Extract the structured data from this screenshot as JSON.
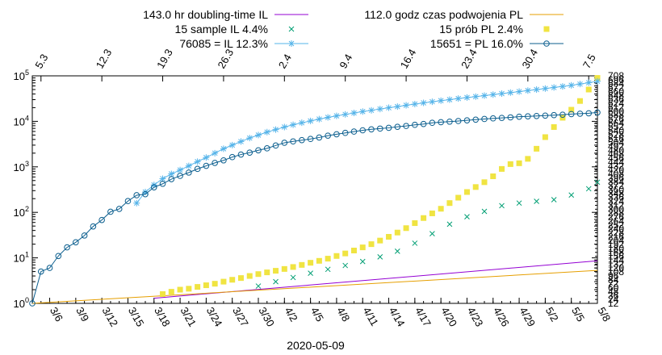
{
  "chart_data": {
    "type": "scatter",
    "y_scale": "log",
    "ylim": [
      1,
      100000
    ],
    "x_dates": [
      "2020-03-04",
      "2020-05-08"
    ],
    "xlabel": "2020-05-09",
    "x_tick_labels": [
      "3/6",
      "3/9",
      "3/12",
      "3/15",
      "3/18",
      "3/21",
      "3/24",
      "3/27",
      "3/30",
      "4/2",
      "4/5",
      "4/8",
      "4/11",
      "4/14",
      "4/17",
      "4/20",
      "4/23",
      "4/26",
      "4/29",
      "5/2",
      "5/5",
      "5/8"
    ],
    "y_tick_labels": [
      "10^0",
      "10^1",
      "10^2",
      "10^3",
      "10^4",
      "10^5"
    ],
    "top_tick_labels": [
      "5.3",
      "12.3",
      "19.3",
      "26.3",
      "2.4",
      "9.4",
      "16.4",
      "23.4",
      "30.4",
      "7.5"
    ],
    "right_tick_labels": [
      "12",
      "24",
      "36",
      "48",
      "60",
      "72",
      "84",
      "96",
      "108",
      "120",
      "132",
      "144",
      "156",
      "168",
      "180",
      "192",
      "204",
      "216",
      "228",
      "240",
      "252",
      "264",
      "276",
      "288",
      "300",
      "312",
      "324",
      "336",
      "348",
      "360",
      "372",
      "384",
      "396",
      "408",
      "420",
      "432",
      "444",
      "456",
      "468",
      "480",
      "492",
      "504",
      "516",
      "528",
      "540",
      "552",
      "564",
      "576",
      "588",
      "600",
      "612",
      "624",
      "636",
      "648",
      "660",
      "672",
      "684",
      "696",
      "708"
    ],
    "legend_position": "top",
    "grid": false,
    "series": [
      {
        "name": "143.0 hr doubling-time IL",
        "style": "line",
        "color": "#9400d3",
        "x": [
          "2020-03-18",
          "2020-05-08"
        ],
        "y": [
          1.3,
          8.6
        ]
      },
      {
        "name": "112.0 godz czas podwojenia PL",
        "style": "line",
        "color": "#e69f00",
        "x": [
          "2020-03-04",
          "2020-05-08"
        ],
        "y": [
          1.0,
          5.3
        ]
      },
      {
        "name": "15 sample IL 4.4%",
        "style": "x",
        "color": "#009e73",
        "x": [
          "2020-03-30",
          "2020-04-01",
          "2020-04-03",
          "2020-04-05",
          "2020-04-07",
          "2020-04-09",
          "2020-04-11",
          "2020-04-13",
          "2020-04-15",
          "2020-04-17",
          "2020-04-19",
          "2020-04-21",
          "2020-04-23",
          "2020-04-25",
          "2020-04-27",
          "2020-04-29",
          "2020-05-01",
          "2020-05-03",
          "2020-05-05",
          "2020-05-07",
          "2020-05-08"
        ],
        "y": [
          2.4,
          3,
          3.7,
          4.6,
          5.6,
          6.8,
          8.3,
          10.5,
          14,
          21,
          34,
          55,
          80,
          105,
          140,
          160,
          175,
          190,
          240,
          330,
          460
        ]
      },
      {
        "name": "15 prób PL 2.4%",
        "style": "square",
        "color": "#f0e442",
        "x": [
          "2020-03-19",
          "2020-03-20",
          "2020-03-21",
          "2020-03-22",
          "2020-03-23",
          "2020-03-24",
          "2020-03-25",
          "2020-03-26",
          "2020-03-27",
          "2020-03-28",
          "2020-03-29",
          "2020-03-30",
          "2020-03-31",
          "2020-04-01",
          "2020-04-02",
          "2020-04-03",
          "2020-04-04",
          "2020-04-05",
          "2020-04-06",
          "2020-04-07",
          "2020-04-08",
          "2020-04-09",
          "2020-04-10",
          "2020-04-11",
          "2020-04-12",
          "2020-04-13",
          "2020-04-14",
          "2020-04-15",
          "2020-04-16",
          "2020-04-17",
          "2020-04-18",
          "2020-04-19",
          "2020-04-20",
          "2020-04-21",
          "2020-04-22",
          "2020-04-23",
          "2020-04-24",
          "2020-04-25",
          "2020-04-26",
          "2020-04-27",
          "2020-04-28",
          "2020-04-29",
          "2020-04-30",
          "2020-05-01",
          "2020-05-02",
          "2020-05-03",
          "2020-05-04",
          "2020-05-05",
          "2020-05-06",
          "2020-05-07",
          "2020-05-08"
        ],
        "y": [
          1.6,
          1.8,
          2.0,
          2.1,
          2.3,
          2.5,
          2.7,
          3.0,
          3.3,
          3.6,
          4.0,
          4.4,
          4.8,
          5.2,
          5.7,
          6.3,
          7.0,
          7.8,
          8.6,
          9.6,
          11,
          12.5,
          14.5,
          17,
          20,
          24,
          29,
          36,
          45,
          58,
          75,
          95,
          120,
          160,
          210,
          280,
          360,
          460,
          620,
          900,
          1150,
          1200,
          1500,
          2500,
          4500,
          7500,
          12000,
          18000,
          28000,
          50000,
          90000
        ]
      },
      {
        "name": "76085 = IL 12.3%",
        "style": "star",
        "color": "#56b4e9",
        "x": [
          "2020-03-16",
          "2020-03-17",
          "2020-03-18",
          "2020-03-19",
          "2020-03-20",
          "2020-03-21",
          "2020-03-22",
          "2020-03-23",
          "2020-03-24",
          "2020-03-25",
          "2020-03-26",
          "2020-03-27",
          "2020-03-28",
          "2020-03-29",
          "2020-03-30",
          "2020-03-31",
          "2020-04-01",
          "2020-04-02",
          "2020-04-03",
          "2020-04-04",
          "2020-04-05",
          "2020-04-06",
          "2020-04-07",
          "2020-04-08",
          "2020-04-09",
          "2020-04-10",
          "2020-04-11",
          "2020-04-12",
          "2020-04-13",
          "2020-04-14",
          "2020-04-15",
          "2020-04-16",
          "2020-04-17",
          "2020-04-18",
          "2020-04-19",
          "2020-04-20",
          "2020-04-21",
          "2020-04-22",
          "2020-04-23",
          "2020-04-24",
          "2020-04-25",
          "2020-04-26",
          "2020-04-27",
          "2020-04-28",
          "2020-04-29",
          "2020-04-30",
          "2020-05-01",
          "2020-05-02",
          "2020-05-03",
          "2020-05-04",
          "2020-05-05",
          "2020-05-06",
          "2020-05-07",
          "2020-05-08"
        ],
        "y": [
          160,
          280,
          400,
          550,
          700,
          850,
          1050,
          1300,
          1600,
          2000,
          2500,
          3000,
          3600,
          4300,
          5000,
          5800,
          6600,
          7500,
          8400,
          9300,
          10200,
          11200,
          12200,
          13200,
          14200,
          15300,
          16400,
          17500,
          18700,
          19900,
          21100,
          22500,
          24000,
          25500,
          27000,
          28500,
          30000,
          31700,
          33400,
          35000,
          36800,
          38700,
          40700,
          42800,
          45000,
          47500,
          50000,
          52500,
          55500,
          58500,
          62000,
          66000,
          70500,
          76085
        ]
      },
      {
        "name": "15651 = PL 16.0%",
        "style": "circle",
        "color": "#0b5e8e",
        "x": [
          "2020-03-04",
          "2020-03-05",
          "2020-03-06",
          "2020-03-07",
          "2020-03-08",
          "2020-03-09",
          "2020-03-10",
          "2020-03-11",
          "2020-03-12",
          "2020-03-13",
          "2020-03-14",
          "2020-03-15",
          "2020-03-16",
          "2020-03-17",
          "2020-03-18",
          "2020-03-19",
          "2020-03-20",
          "2020-03-21",
          "2020-03-22",
          "2020-03-23",
          "2020-03-24",
          "2020-03-25",
          "2020-03-26",
          "2020-03-27",
          "2020-03-28",
          "2020-03-29",
          "2020-03-30",
          "2020-03-31",
          "2020-04-01",
          "2020-04-02",
          "2020-04-03",
          "2020-04-04",
          "2020-04-05",
          "2020-04-06",
          "2020-04-07",
          "2020-04-08",
          "2020-04-09",
          "2020-04-10",
          "2020-04-11",
          "2020-04-12",
          "2020-04-13",
          "2020-04-14",
          "2020-04-15",
          "2020-04-16",
          "2020-04-17",
          "2020-04-18",
          "2020-04-19",
          "2020-04-20",
          "2020-04-21",
          "2020-04-22",
          "2020-04-23",
          "2020-04-24",
          "2020-04-25",
          "2020-04-26",
          "2020-04-27",
          "2020-04-28",
          "2020-04-29",
          "2020-04-30",
          "2020-05-01",
          "2020-05-02",
          "2020-05-03",
          "2020-05-04",
          "2020-05-05",
          "2020-05-06",
          "2020-05-07",
          "2020-05-08"
        ],
        "y": [
          1,
          5,
          6,
          11,
          17,
          22,
          31,
          49,
          68,
          103,
          119,
          177,
          238,
          251,
          355,
          425,
          536,
          634,
          749,
          901,
          1051,
          1221,
          1389,
          1638,
          1862,
          2055,
          2311,
          2554,
          2946,
          3383,
          3627,
          3862,
          4102,
          4413,
          4848,
          5205,
          5575,
          5955,
          6356,
          6674,
          6934,
          7202,
          7582,
          7918,
          8379,
          8742,
          9287,
          9593,
          9856,
          10169,
          10511,
          10892,
          11273,
          11617,
          11902,
          12218,
          12640,
          12877,
          13105,
          13375,
          13693,
          14006,
          14431,
          14740,
          15047,
          15651
        ]
      }
    ]
  }
}
